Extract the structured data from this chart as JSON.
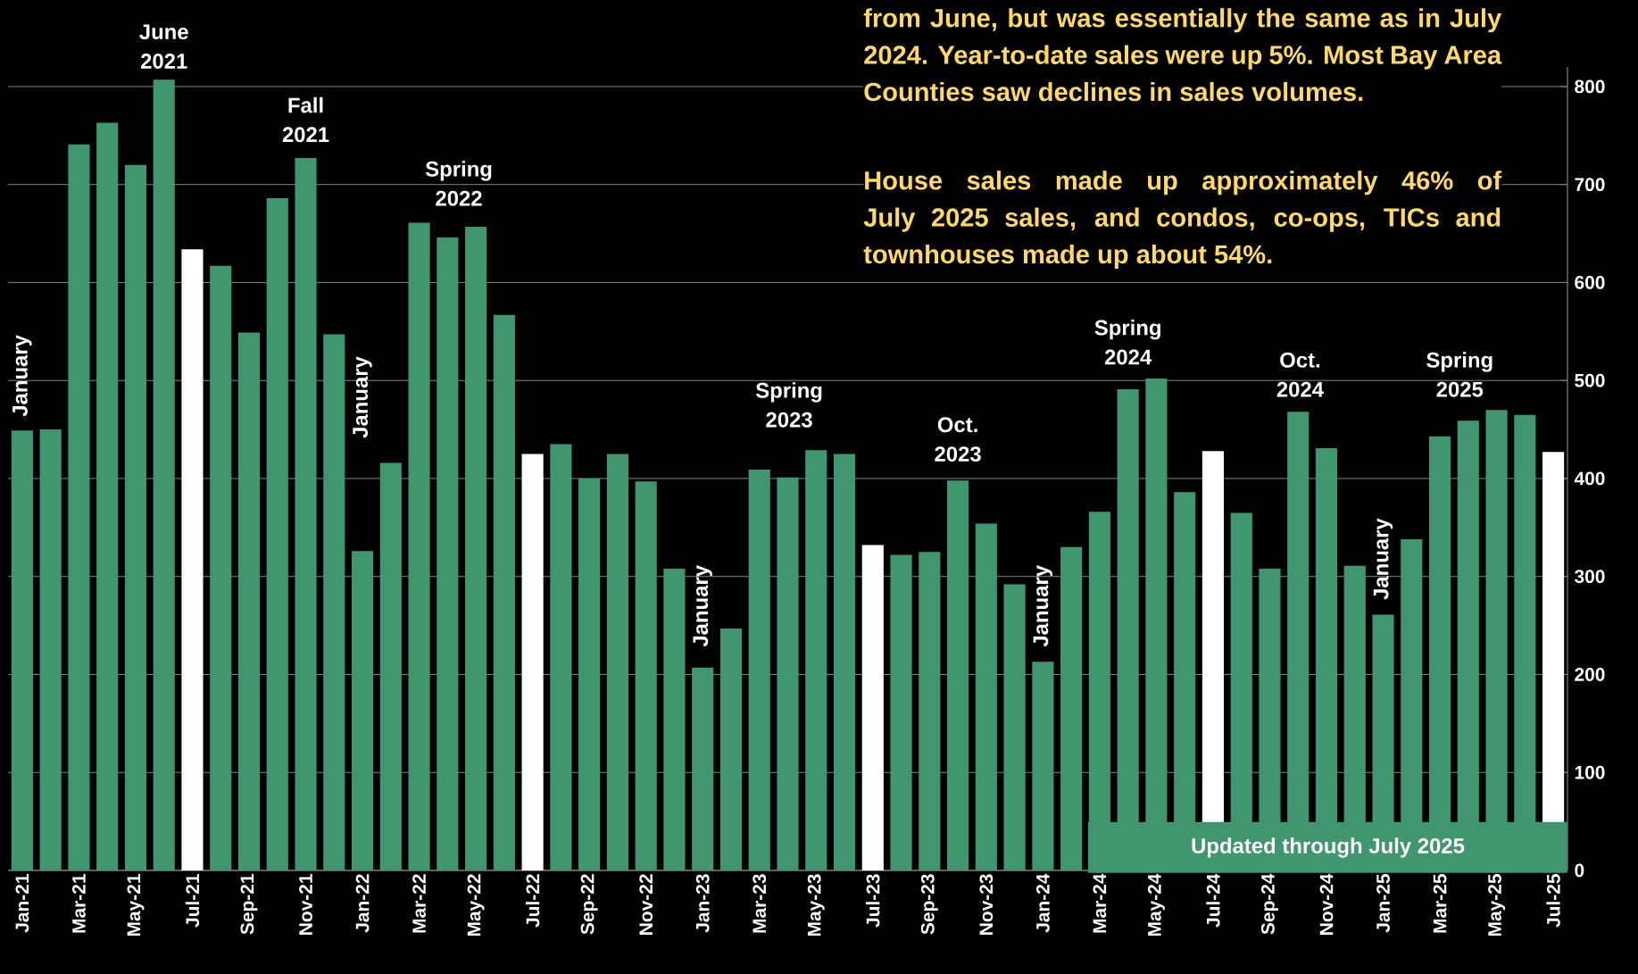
{
  "chart_data": {
    "type": "bar",
    "categories": [
      "Jan-21",
      null,
      "Mar-21",
      null,
      "May-21",
      null,
      "Jul-21",
      null,
      "Sep-21",
      null,
      "Nov-21",
      null,
      "Jan-22",
      null,
      "Mar-22",
      null,
      "May-22",
      null,
      "Jul-22",
      null,
      "Sep-22",
      null,
      "Nov-22",
      null,
      "Jan-23",
      null,
      "Mar-23",
      null,
      "May-23",
      null,
      "Jul-23",
      null,
      "Sep-23",
      null,
      "Nov-23",
      null,
      "Jan-24",
      null,
      "Mar-24",
      null,
      "May-24",
      null,
      "Jul-24",
      null,
      "Sep-24",
      null,
      "Nov-24",
      null,
      "Jan-25",
      null,
      "Mar-25",
      null,
      "May-25",
      null,
      "Jul-25"
    ],
    "values": [
      449,
      450,
      741,
      763,
      720,
      807,
      634,
      617,
      549,
      686,
      727,
      547,
      326,
      416,
      661,
      646,
      657,
      567,
      425,
      435,
      400,
      425,
      397,
      308,
      207,
      247,
      409,
      401,
      429,
      425,
      332,
      322,
      325,
      398,
      354,
      292,
      213,
      330,
      366,
      491,
      502,
      386,
      428,
      365,
      308,
      468,
      431,
      311,
      261,
      338,
      443,
      459,
      470,
      465,
      427
    ],
    "colors": [
      "#40966f",
      "#40966f",
      "#40966f",
      "#40966f",
      "#40966f",
      "#40966f",
      "#ffffff",
      "#40966f",
      "#40966f",
      "#40966f",
      "#40966f",
      "#40966f",
      "#40966f",
      "#40966f",
      "#40966f",
      "#40966f",
      "#40966f",
      "#40966f",
      "#ffffff",
      "#40966f",
      "#40966f",
      "#40966f",
      "#40966f",
      "#40966f",
      "#40966f",
      "#40966f",
      "#40966f",
      "#40966f",
      "#40966f",
      "#40966f",
      "#ffffff",
      "#40966f",
      "#40966f",
      "#40966f",
      "#40966f",
      "#40966f",
      "#40966f",
      "#40966f",
      "#40966f",
      "#40966f",
      "#40966f",
      "#40966f",
      "#ffffff",
      "#40966f",
      "#40966f",
      "#40966f",
      "#40966f",
      "#40966f",
      "#40966f",
      "#40966f",
      "#40966f",
      "#40966f",
      "#40966f",
      "#40966f",
      "#ffffff"
    ],
    "ylim": [
      0,
      820
    ],
    "yticks": [
      0,
      100,
      200,
      300,
      400,
      500,
      600,
      700,
      800
    ],
    "grid": "y",
    "annotations": [
      "June 2021",
      "Fall 2021",
      "Spring 2022",
      "January",
      "January",
      "Spring 2023",
      "January",
      "Oct. 2023",
      "January",
      "Spring 2024",
      "Oct. 2024",
      "January",
      "Spring 2025",
      "from June, but was essentially the same as in July 2024. Year-to-date sales were up 5%. Most Bay Area Counties saw declines in sales volumes.",
      "House sales made up approximately 46% of July 2025 sales, and condos, co-ops, TICs and townhouses made up about 54%.",
      "Updated through July 2025"
    ]
  }
}
